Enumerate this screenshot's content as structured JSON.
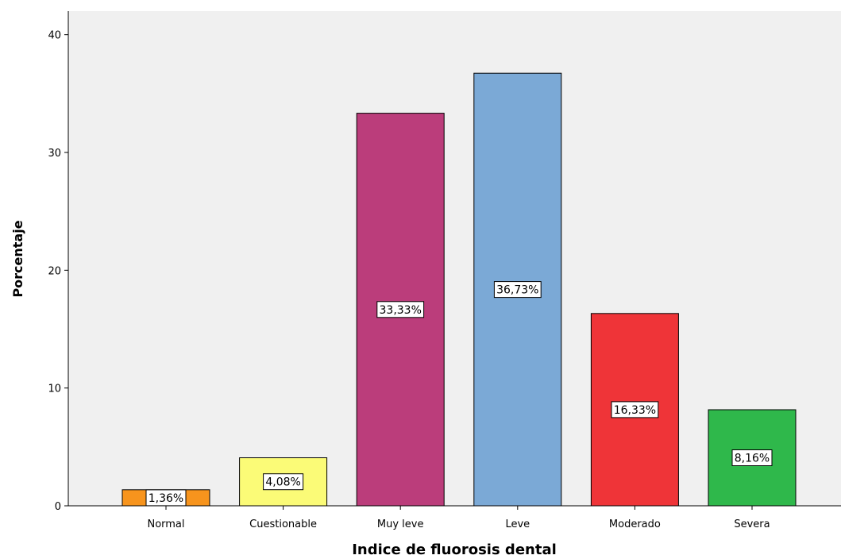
{
  "chart_data": {
    "type": "bar",
    "title": "",
    "xlabel": "Indice de fluorosis dental",
    "ylabel": "Porcentaje",
    "categories": [
      "Normal",
      "Cuestionable",
      "Muy leve",
      "Leve",
      "Moderado",
      "Severa"
    ],
    "values": [
      1.36,
      4.08,
      33.33,
      36.73,
      16.33,
      8.16
    ],
    "value_labels": [
      "1,36%",
      "4,08%",
      "33,33%",
      "36,73%",
      "16,33%",
      "8,16%"
    ],
    "colors": [
      "#f7941d",
      "#fbfb77",
      "#bb3d7b",
      "#7ba9d6",
      "#ef3438",
      "#2fb84b"
    ],
    "ylim": [
      0,
      42
    ],
    "yticks": [
      0,
      10,
      20,
      30,
      40
    ],
    "ytick_labels": [
      "0",
      "10",
      "20",
      "30",
      "40"
    ],
    "grid": false,
    "plot_background": "#f0f0f0"
  }
}
